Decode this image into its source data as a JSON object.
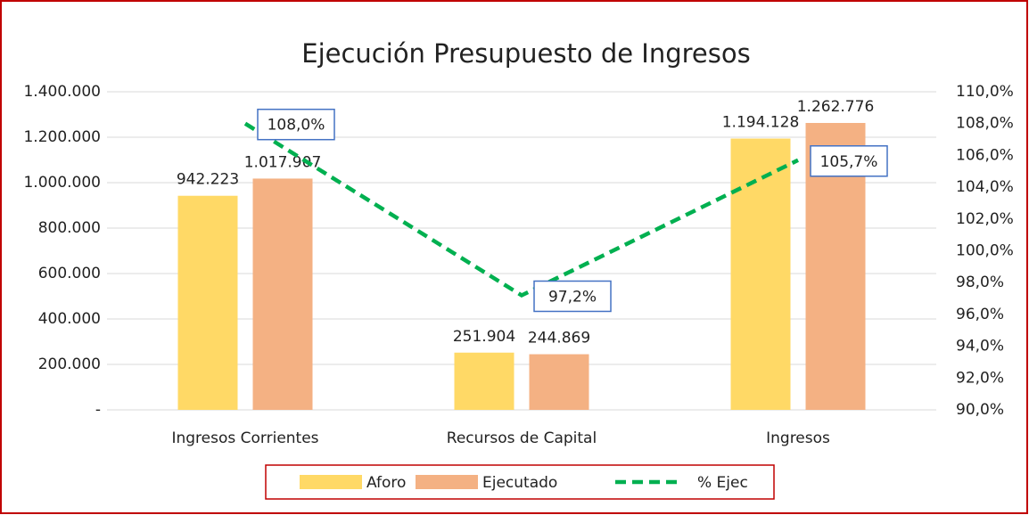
{
  "chart_data": {
    "type": "bar_line",
    "title": "Ejecución Presupuesto de Ingresos",
    "categories": [
      "Ingresos Corrientes",
      "Recursos de Capital",
      "Ingresos"
    ],
    "series": [
      {
        "name": "Aforo",
        "color": "#ffd966",
        "type": "bar",
        "values": [
          942223,
          251904,
          1194128
        ],
        "value_labels": [
          "942.223",
          "251.904",
          "1.194.128"
        ]
      },
      {
        "name": "Ejecutado",
        "color": "#f4b183",
        "type": "bar",
        "values": [
          1017907,
          244869,
          1262776
        ],
        "value_labels": [
          "1.017.907",
          "244.869",
          "1.262.776"
        ]
      },
      {
        "name": "% Ejec",
        "color": "#00b050",
        "type": "line",
        "axis": "y2",
        "values": [
          108.0,
          97.2,
          105.7
        ],
        "value_labels": [
          "108,0%",
          "97,2%",
          "105,7%"
        ]
      }
    ],
    "ylim": [
      0,
      1400000
    ],
    "yticks": [
      {
        "value": 0,
        "label": "-"
      },
      {
        "value": 200000,
        "label": "200.000"
      },
      {
        "value": 400000,
        "label": "400.000"
      },
      {
        "value": 600000,
        "label": "600.000"
      },
      {
        "value": 800000,
        "label": "800.000"
      },
      {
        "value": 1000000,
        "label": "1.000.000"
      },
      {
        "value": 1200000,
        "label": "1.200.000"
      },
      {
        "value": 1400000,
        "label": "1.400.000"
      }
    ],
    "y2lim": [
      90,
      110
    ],
    "y2ticks": [
      {
        "value": 90,
        "label": "90,0%"
      },
      {
        "value": 92,
        "label": "92,0%"
      },
      {
        "value": 94,
        "label": "94,0%"
      },
      {
        "value": 96,
        "label": "96,0%"
      },
      {
        "value": 98,
        "label": "98,0%"
      },
      {
        "value": 100,
        "label": "100,0%"
      },
      {
        "value": 102,
        "label": "102,0%"
      },
      {
        "value": 104,
        "label": "104,0%"
      },
      {
        "value": 106,
        "label": "106,0%"
      },
      {
        "value": 108,
        "label": "108,0%"
      },
      {
        "value": 110,
        "label": "110,0%"
      }
    ],
    "grid": true,
    "legend": "bottom"
  }
}
